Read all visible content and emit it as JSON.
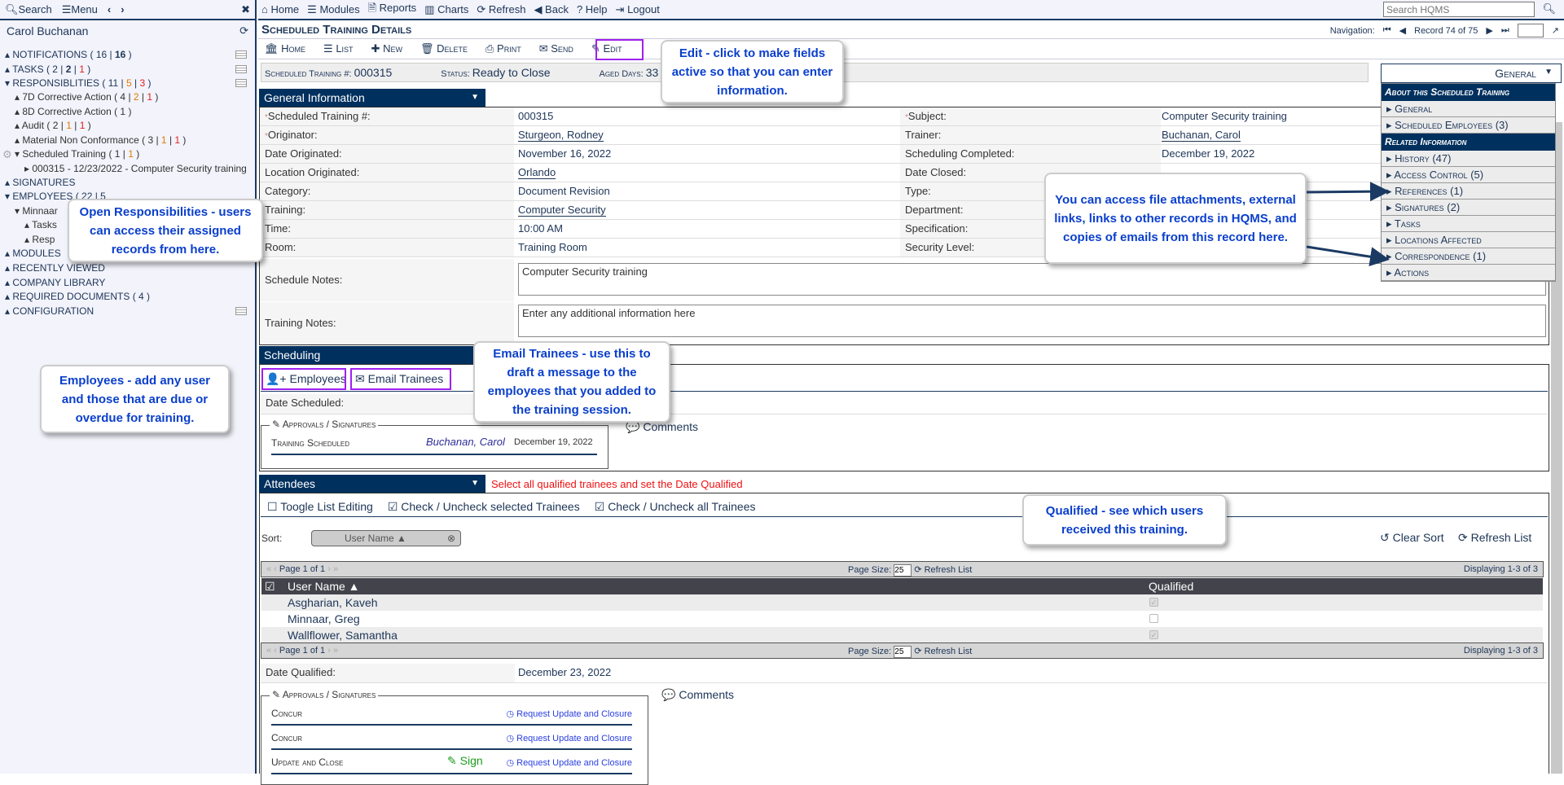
{
  "sidebar": {
    "search": "Search",
    "menu": "Menu",
    "user": "Carol Buchanan",
    "items": {
      "notifications": {
        "label": "NOTIFICATIONS",
        "c1": "16",
        "c2": "16"
      },
      "tasks": {
        "label": "TASKS",
        "c1": "2",
        "c2": "2",
        "c3": "1"
      },
      "responsibilities": {
        "label": "RESPONSIBLITIES",
        "c1": "11",
        "c2": "5",
        "c3": "3"
      },
      "ca7d": {
        "label": "7D Corrective Action",
        "c1": "4",
        "c2": "2",
        "c3": "1"
      },
      "ca8d": {
        "label": "8D Corrective Action",
        "c1": "1"
      },
      "audit": {
        "label": "Audit",
        "c1": "2",
        "c2": "1",
        "c3": "1"
      },
      "mnc": {
        "label": "Material Non Conformance",
        "c1": "3",
        "c2": "1",
        "c3": "1"
      },
      "st": {
        "label": "Scheduled Training",
        "c1": "1",
        "c2": "1"
      },
      "record": "000315 - 12/23/2022 - Computer Security training",
      "signatures": "SIGNATURES",
      "employees": "EMPLOYEES ( 22 | 5",
      "minnaar": "Minnaar",
      "tasks_sub": "Tasks",
      "resp_sub": "Resp",
      "modules": "MODULES",
      "recent": "RECENTLY VIEWED",
      "library": "COMPANY LIBRARY",
      "required": "REQUIRED DOCUMENTS ( 4 )",
      "config": "CONFIGURATION"
    }
  },
  "topnav": [
    "Home",
    "Modules",
    "Reports",
    "Charts",
    "Refresh",
    "Back",
    "Help",
    "Logout"
  ],
  "search_placeholder": "Search HQMS",
  "page_title": "Scheduled Training Details",
  "navigation": {
    "label": "Navigation:",
    "record": "Record 74 of 75"
  },
  "toolbar": [
    "Home",
    "List",
    "New",
    "Delete",
    "Print",
    "Send",
    "Edit"
  ],
  "header": {
    "num_label": "Scheduled Training #:",
    "num": "000315",
    "status_label": "Status:",
    "status": "Ready to Close",
    "aged_label": "Aged Days:",
    "aged": "33"
  },
  "general": {
    "title": "General Information",
    "left": [
      [
        "Scheduled Training #:",
        "000315"
      ],
      [
        "Originator:",
        "Sturgeon, Rodney"
      ],
      [
        "Date Originated:",
        "November 16, 2022"
      ],
      [
        "Location Originated:",
        "Orlando"
      ],
      [
        "Category:",
        "Document Revision"
      ],
      [
        "Training:",
        "Computer Security"
      ],
      [
        "Time:",
        "10:00 AM"
      ],
      [
        "Room:",
        "Training Room"
      ]
    ],
    "right": [
      [
        "Subject:",
        "Computer Security training"
      ],
      [
        "Trainer:",
        "Buchanan, Carol"
      ],
      [
        "Scheduling Completed:",
        "December 19, 2022"
      ],
      [
        "Date Closed:",
        ""
      ],
      [
        "Type:",
        ""
      ],
      [
        "Department:",
        ""
      ],
      [
        "Specification:",
        ""
      ],
      [
        "Security Level:",
        ""
      ]
    ],
    "schedule_notes_label": "Schedule Notes:",
    "schedule_notes": "Computer Security training",
    "training_notes_label": "Training Notes:",
    "training_notes": "Enter any additional information here"
  },
  "scheduling": {
    "title": "Scheduling",
    "employees_btn": "Employees",
    "email_btn": "Email Trainees",
    "date_label": "Date Scheduled:",
    "approvals": "Approvals / Signatures",
    "sig_role": "Training Scheduled",
    "sig_name": "Buchanan, Carol",
    "sig_date": "December 19, 2022",
    "comments": "Comments"
  },
  "attendees": {
    "title": "Attendees",
    "notice": "Select all qualified trainees and set the Date Qualified",
    "toggle": "Toogle List Editing",
    "check_sel": "Check / Uncheck selected Trainees",
    "check_all": "Check / Uncheck all Trainees",
    "sort_label": "Sort:",
    "sort_chip": "User Name ▲",
    "clear_sort": "Clear Sort",
    "refresh_list": "Refresh List",
    "pager": "Page 1 of 1",
    "page_size_label": "Page Size:",
    "page_size": "25",
    "pager_refresh": "Refresh List",
    "displaying": "Displaying 1-3 of 3",
    "col_user": "User Name ▲",
    "col_qualified": "Qualified",
    "rows": [
      {
        "name": "Asgharian, Kaveh",
        "qualified": true
      },
      {
        "name": "Minnaar, Greg",
        "qualified": false
      },
      {
        "name": "Wallflower, Samantha",
        "qualified": true
      }
    ],
    "date_qualified_label": "Date Qualified:",
    "date_qualified": "December 23, 2022",
    "approvals": "Approvals / Signatures",
    "comments": "Comments",
    "signatures": [
      {
        "role": "Concur",
        "sign": "",
        "req": "Request Update and Closure"
      },
      {
        "role": "Concur",
        "sign": "",
        "req": "Request Update and Closure"
      },
      {
        "role": "Update and Close",
        "sign": "Sign",
        "req": "Request Update and Closure"
      }
    ]
  },
  "side_menu": {
    "selected": "General",
    "sec1": "About this Scheduled Training",
    "items1": [
      "General",
      "Scheduled Employees (3)"
    ],
    "sec2": "Related Information",
    "items2": [
      "History (47)",
      "Access Control (5)",
      "References (1)",
      "Signatures (2)",
      "Tasks",
      "Locations Affected",
      "Correspondence (1)",
      "Actions"
    ]
  },
  "callouts": {
    "edit": "Edit - click to make fields active so that you can enter information.",
    "resp": "Open Responsibilities - users can access their assigned records from here.",
    "employees": "Employees - add any user and those that are due or overdue for training.",
    "email": "Email Trainees - use this to draft a message to the employees that you added to the training session.",
    "files": "You can access file attachments, external links, links to other records in HQMS, and copies of emails from this record here.",
    "qualified": "Qualified - see which users received this training."
  },
  "colors": {
    "navy": "#00305e",
    "orange": "#e07b00",
    "red": "#e02020",
    "highlight": "#a020f0",
    "callout_text": "#0a3fcc"
  }
}
